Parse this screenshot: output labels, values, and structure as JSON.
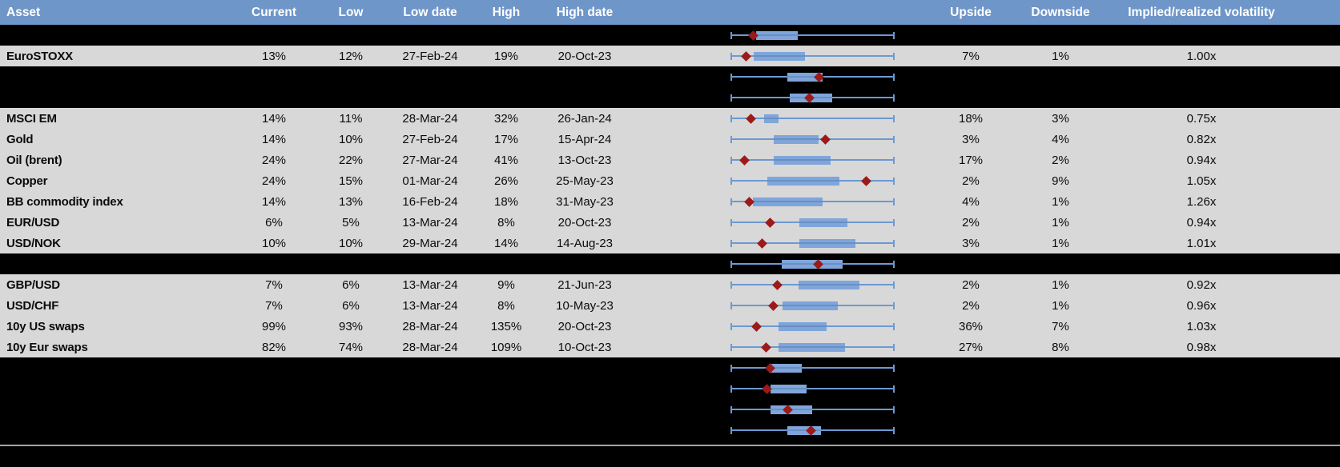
{
  "header": {
    "asset": "Asset",
    "current": "Current",
    "low": "Low",
    "low_date": "Low date",
    "high": "High",
    "high_date": "High date",
    "upside": "Upside",
    "downside": "Downside",
    "impl_vol": "Implied/realized volatility"
  },
  "colors": {
    "header_bg": "#6e96c8",
    "header_text": "#ffffff",
    "row_gray": "#d8d8d8",
    "row_hidden": "#000000",
    "whisker_blue": "#6c99d3",
    "box_blue": "#7fa5da",
    "box_center_line": "#6890c4",
    "diamond_red": "#9c1a1a",
    "divider_gray": "#a3a3a3"
  },
  "boxplot_note": "range_low/range_high/point are fractions of each row's min-max whisker span (0 = left cap, 1 = right cap); diamond = current level",
  "rows": [
    {
      "type": "hidden",
      "box": {
        "range_low": 0.158,
        "range_high": 0.412,
        "point": 0.137
      }
    },
    {
      "type": "data",
      "asset": "EuroSTOXX",
      "current": "13%",
      "low": "12%",
      "low_date": "27-Feb-24",
      "high": "19%",
      "high_date": "20-Oct-23",
      "upside": "7%",
      "downside": "1%",
      "impl_vol": "1.00x",
      "box": {
        "range_low": 0.142,
        "range_high": 0.453,
        "point": 0.096
      }
    },
    {
      "type": "hidden",
      "box": {
        "range_low": 0.346,
        "range_high": 0.559,
        "point": 0.539
      }
    },
    {
      "type": "hidden",
      "box": {
        "range_low": 0.359,
        "range_high": 0.621,
        "point": 0.482
      }
    },
    {
      "type": "data",
      "asset": "MSCI EM",
      "current": "14%",
      "low": "11%",
      "low_date": "28-Mar-24",
      "high": "32%",
      "high_date": "26-Jan-24",
      "upside": "18%",
      "downside": "3%",
      "impl_vol": "0.75x",
      "box": {
        "range_low": 0.207,
        "range_high": 0.294,
        "point": 0.123
      }
    },
    {
      "type": "data",
      "asset": "Gold",
      "current": "14%",
      "low": "10%",
      "low_date": "27-Feb-24",
      "high": "17%",
      "high_date": "15-Apr-24",
      "upside": "3%",
      "downside": "4%",
      "impl_vol": "0.82x",
      "box": {
        "range_low": 0.265,
        "range_high": 0.539,
        "point": 0.578
      }
    },
    {
      "type": "data",
      "asset": "Oil (brent)",
      "current": "24%",
      "low": "22%",
      "low_date": "27-Mar-24",
      "high": "41%",
      "high_date": "13-Oct-23",
      "upside": "17%",
      "downside": "2%",
      "impl_vol": "0.94x",
      "box": {
        "range_low": 0.265,
        "range_high": 0.608,
        "point": 0.085
      }
    },
    {
      "type": "data",
      "asset": "Copper",
      "current": "24%",
      "low": "15%",
      "low_date": "01-Mar-24",
      "high": "26%",
      "high_date": "25-May-23",
      "upside": "2%",
      "downside": "9%",
      "impl_vol": "1.05x",
      "box": {
        "range_low": 0.224,
        "range_high": 0.665,
        "point": 0.828
      }
    },
    {
      "type": "data",
      "asset": "BB commodity index",
      "current": "14%",
      "low": "13%",
      "low_date": "16-Feb-24",
      "high": "18%",
      "high_date": "31-May-23",
      "upside": "4%",
      "downside": "1%",
      "impl_vol": "1.26x",
      "box": {
        "range_low": 0.134,
        "range_high": 0.559,
        "point": 0.114
      }
    },
    {
      "type": "data",
      "asset": "EUR/USD",
      "current": "6%",
      "low": "5%",
      "low_date": "13-Mar-24",
      "high": "8%",
      "high_date": "20-Oct-23",
      "upside": "2%",
      "downside": "1%",
      "impl_vol": "0.94x",
      "box": {
        "range_low": 0.42,
        "range_high": 0.714,
        "point": 0.243
      }
    },
    {
      "type": "data",
      "asset": "USD/NOK",
      "current": "10%",
      "low": "10%",
      "low_date": "29-Mar-24",
      "high": "14%",
      "high_date": "14-Aug-23",
      "upside": "3%",
      "downside": "1%",
      "impl_vol": "1.01x",
      "box": {
        "range_low": 0.417,
        "range_high": 0.763,
        "point": 0.191
      }
    },
    {
      "type": "hidden",
      "box": {
        "range_low": 0.31,
        "range_high": 0.681,
        "point": 0.534
      }
    },
    {
      "type": "data",
      "asset": "GBP/USD",
      "current": "7%",
      "low": "6%",
      "low_date": "13-Mar-24",
      "high": "9%",
      "high_date": "21-Jun-23",
      "upside": "2%",
      "downside": "1%",
      "impl_vol": "0.92x",
      "box": {
        "range_low": 0.412,
        "range_high": 0.787,
        "point": 0.284
      }
    },
    {
      "type": "data",
      "asset": "USD/CHF",
      "current": "7%",
      "low": "6%",
      "low_date": "13-Mar-24",
      "high": "8%",
      "high_date": "10-May-23",
      "upside": "2%",
      "downside": "1%",
      "impl_vol": "0.96x",
      "box": {
        "range_low": 0.317,
        "range_high": 0.652,
        "point": 0.26
      }
    },
    {
      "type": "data",
      "asset": "10y US swaps",
      "current": "99%",
      "low": "93%",
      "low_date": "28-Mar-24",
      "high": "135%",
      "high_date": "20-Oct-23",
      "upside": "36%",
      "downside": "7%",
      "impl_vol": "1.03x",
      "box": {
        "range_low": 0.294,
        "range_high": 0.585,
        "point": 0.158
      }
    },
    {
      "type": "data",
      "asset": "10y Eur swaps",
      "current": "82%",
      "low": "74%",
      "low_date": "28-Mar-24",
      "high": "109%",
      "high_date": "10-Oct-23",
      "upside": "27%",
      "downside": "8%",
      "impl_vol": "0.98x",
      "box": {
        "range_low": 0.294,
        "range_high": 0.698,
        "point": 0.219
      }
    },
    {
      "type": "hidden",
      "box": {
        "range_low": 0.235,
        "range_high": 0.435,
        "point": 0.24
      }
    },
    {
      "type": "hidden",
      "box": {
        "range_low": 0.245,
        "range_high": 0.465,
        "point": 0.224
      }
    },
    {
      "type": "hidden",
      "box": {
        "range_low": 0.245,
        "range_high": 0.5,
        "point": 0.35
      }
    },
    {
      "type": "hidden",
      "box": {
        "range_low": 0.347,
        "range_high": 0.551,
        "point": 0.49
      }
    }
  ]
}
